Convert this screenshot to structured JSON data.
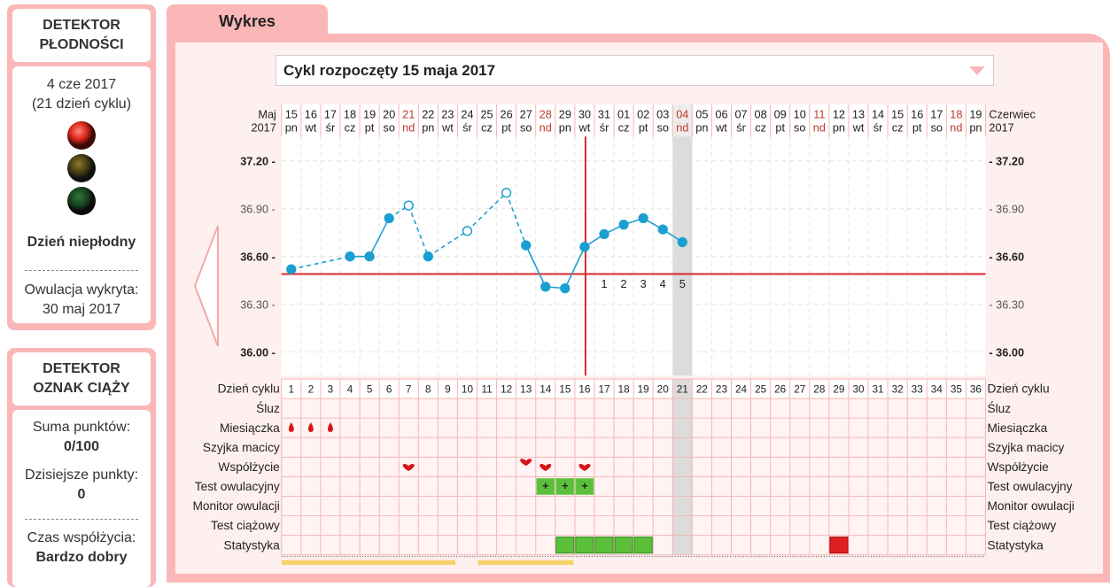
{
  "fertility_detector": {
    "title": "DETEKTOR PŁODNOŚCI",
    "date": "4 cze 2017",
    "cycle_day": "(21 dzień cyklu)",
    "status": "Dzień niepłodny",
    "ovulation_label": "Owulacja wykryta:",
    "ovulation_date": "30 maj 2017"
  },
  "pregnancy_detector": {
    "title": "DETEKTOR OZNAK CIĄŻY",
    "sum_label": "Suma punktów:",
    "sum_value": "0/100",
    "today_label": "Dzisiejsze punkty:",
    "today_value": "0",
    "intercourse_label": "Czas współżycia:",
    "intercourse_value": "Bardzo dobry"
  },
  "tab": {
    "label": "Wykres"
  },
  "cycle_select": {
    "value": "Cykl rozpoczęty 15 maja 2017"
  },
  "chart_data": {
    "type": "line",
    "month_left": [
      "Maj",
      "2017"
    ],
    "month_right": [
      "Czerwiec",
      "2017"
    ],
    "dates": [
      "15",
      "16",
      "17",
      "18",
      "19",
      "20",
      "21",
      "22",
      "23",
      "24",
      "25",
      "26",
      "27",
      "28",
      "29",
      "30",
      "31",
      "01",
      "02",
      "03",
      "04",
      "05",
      "06",
      "07",
      "08",
      "09",
      "10",
      "11",
      "12",
      "13",
      "14",
      "15",
      "16",
      "17",
      "18",
      "19"
    ],
    "weekdays": [
      "pn",
      "wt",
      "śr",
      "cz",
      "pt",
      "so",
      "nd",
      "pn",
      "wt",
      "śr",
      "cz",
      "pt",
      "so",
      "nd",
      "pn",
      "wt",
      "śr",
      "cz",
      "pt",
      "so",
      "nd",
      "pn",
      "wt",
      "śr",
      "cz",
      "pt",
      "so",
      "nd",
      "pn",
      "wt",
      "śr",
      "cz",
      "pt",
      "so",
      "nd",
      "pn"
    ],
    "cycle_days": [
      "1",
      "2",
      "3",
      "4",
      "5",
      "6",
      "7",
      "8",
      "9",
      "10",
      "11",
      "12",
      "13",
      "14",
      "15",
      "16",
      "17",
      "18",
      "19",
      "20",
      "21",
      "22",
      "23",
      "24",
      "25",
      "26",
      "27",
      "28",
      "29",
      "30",
      "31",
      "32",
      "33",
      "34",
      "35",
      "36"
    ],
    "y_ticks": [
      "37.20",
      "36.90",
      "36.60",
      "36.30",
      "36.00"
    ],
    "y_ticks_right": [
      "- 37.20",
      "- 36.90",
      "- 36.60",
      "- 36.30",
      "- 36.00"
    ],
    "ylim": [
      36.0,
      37.2
    ],
    "temperatures": [
      {
        "day": 1,
        "t": 36.52,
        "open": false
      },
      {
        "day": 4,
        "t": 36.6,
        "open": false
      },
      {
        "day": 5,
        "t": 36.6,
        "open": false
      },
      {
        "day": 6,
        "t": 36.84,
        "open": false
      },
      {
        "day": 7,
        "t": 36.92,
        "open": true
      },
      {
        "day": 8,
        "t": 36.6,
        "open": false
      },
      {
        "day": 10,
        "t": 36.76,
        "open": true
      },
      {
        "day": 12,
        "t": 37.0,
        "open": true
      },
      {
        "day": 13,
        "t": 36.67,
        "open": false
      },
      {
        "day": 14,
        "t": 36.41,
        "open": false
      },
      {
        "day": 15,
        "t": 36.4,
        "open": false
      },
      {
        "day": 16,
        "t": 36.66,
        "open": false
      },
      {
        "day": 17,
        "t": 36.74,
        "open": false
      },
      {
        "day": 18,
        "t": 36.8,
        "open": false
      },
      {
        "day": 19,
        "t": 36.84,
        "open": false
      },
      {
        "day": 20,
        "t": 36.77,
        "open": false
      },
      {
        "day": 21,
        "t": 36.69,
        "open": false
      }
    ],
    "coverline": 36.49,
    "ovulation_day": 16,
    "today_day": 21,
    "post_ov_labels": [
      "1",
      "2",
      "3",
      "4",
      "5"
    ],
    "rows": [
      "Dzień cyklu",
      "Śluz",
      "Miesiączka",
      "Szyjka macicy",
      "Współżycie",
      "Test owulacyjny",
      "Monitor owulacji",
      "Test ciążowy",
      "Statystyka"
    ],
    "menstruation_days": [
      1,
      2,
      3
    ],
    "intercourse_days": [
      7,
      13,
      14,
      16
    ],
    "ovulation_test_days": [
      14,
      15,
      16
    ],
    "stat_green_days": [
      15,
      16,
      17,
      18,
      19
    ],
    "stat_red_days": [
      29
    ],
    "colors": {
      "line": "#1a9fd1",
      "coverline": "#d9262b",
      "ovline": "#d9262b",
      "sunday": "#c0392b",
      "pink": "#fbb7b7",
      "grid": "#f3b6b6",
      "green": "#5bbf3b",
      "red": "#e02020"
    }
  }
}
